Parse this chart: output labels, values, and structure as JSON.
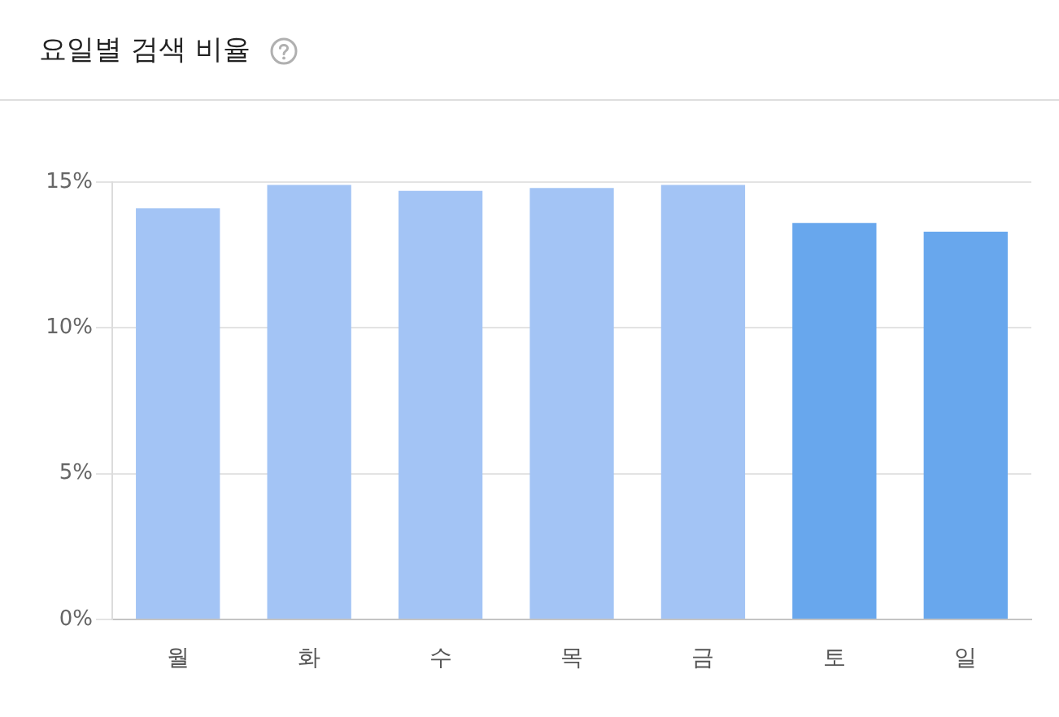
{
  "chart_data": {
    "type": "bar",
    "title": "요일별 검색 비율",
    "categories": [
      "월",
      "화",
      "수",
      "목",
      "금",
      "토",
      "일"
    ],
    "values": [
      14.1,
      14.9,
      14.7,
      14.8,
      14.9,
      13.6,
      13.3
    ],
    "colors": [
      "#a3c4f5",
      "#a3c4f5",
      "#a3c4f5",
      "#a3c4f5",
      "#a3c4f5",
      "#68a7ed",
      "#68a7ed"
    ],
    "ylim": [
      0,
      15
    ],
    "yticks": [
      {
        "value": 0,
        "label": "0%"
      },
      {
        "value": 5,
        "label": "5%"
      },
      {
        "value": 10,
        "label": "10%"
      },
      {
        "value": 15,
        "label": "15%"
      }
    ],
    "grid": "y"
  }
}
